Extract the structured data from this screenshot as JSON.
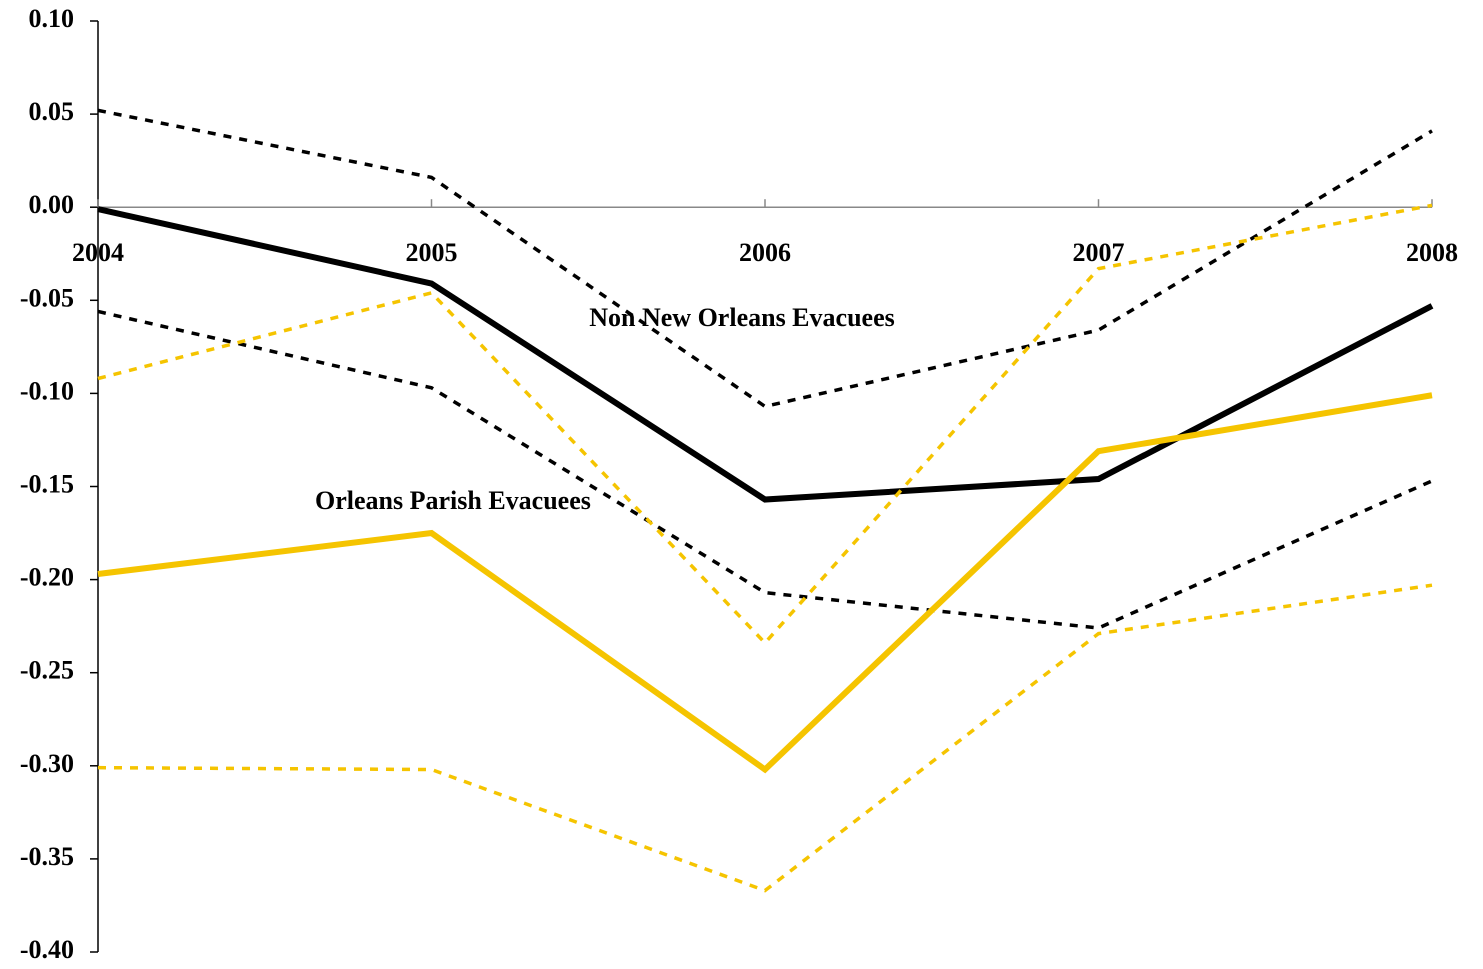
{
  "chart_data": {
    "type": "line",
    "annotations": [
      "Non New Orleans Evacuees",
      "Orleans Parish Evacuees"
    ],
    "categories": [
      "2004",
      "2005",
      "2006",
      "2007",
      "2008"
    ],
    "ylim": [
      -0.4,
      0.1
    ],
    "yticks": [
      {
        "value": 0.1,
        "label": "0.10"
      },
      {
        "value": 0.05,
        "label": "0.05"
      },
      {
        "value": 0,
        "label": "0.00"
      },
      {
        "value": -0.05,
        "label": "-0.05"
      },
      {
        "value": -0.1,
        "label": "-0.10"
      },
      {
        "value": -0.15,
        "label": "-0.15"
      },
      {
        "value": -0.2,
        "label": "-0.20"
      },
      {
        "value": -0.25,
        "label": "-0.25"
      },
      {
        "value": -0.3,
        "label": "-0.30"
      },
      {
        "value": -0.35,
        "label": "-0.35"
      },
      {
        "value": -0.4,
        "label": "-0.40"
      }
    ],
    "grid": false,
    "series": [
      {
        "color": "#000000",
        "style": "solid",
        "values": [
          -0.001,
          -0.041,
          -0.157,
          -0.146,
          -0.053
        ]
      },
      {
        "color": "#000000",
        "style": "dotted",
        "values": [
          0.052,
          0.016,
          -0.107,
          -0.066,
          0.041
        ]
      },
      {
        "color": "#000000",
        "style": "dotted",
        "values": [
          -0.056,
          -0.097,
          -0.207,
          -0.226,
          -0.147
        ]
      },
      {
        "color": "#f5c400",
        "style": "solid",
        "values": [
          -0.197,
          -0.175,
          -0.302,
          -0.131,
          -0.101
        ]
      },
      {
        "color": "#f5c400",
        "style": "dotted",
        "values": [
          -0.092,
          -0.046,
          -0.234,
          -0.033,
          0.001
        ]
      },
      {
        "color": "#f5c400",
        "style": "dotted",
        "values": [
          -0.301,
          -0.302,
          -0.367,
          -0.229,
          -0.203
        ]
      }
    ]
  }
}
